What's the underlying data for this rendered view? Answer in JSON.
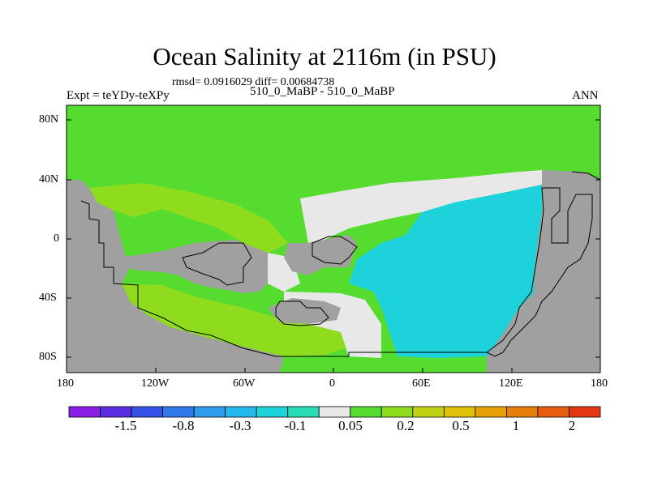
{
  "title": "Ocean Salinity at 2116m (in PSU)",
  "stats": "rmsd= 0.0916029 diff= 0.00684738",
  "left_label": "Expt = teYDy-teXPy",
  "center_label": "510_0_MaBP - 510_0_MaBP",
  "right_label": "ANN",
  "lat_labels": [
    "80N",
    "40N",
    "0",
    "40S",
    "80S"
  ],
  "lon_labels": [
    "180",
    "120W",
    "60W",
    "0",
    "60E",
    "120E",
    "180"
  ],
  "colorbar": {
    "colors": [
      "#8a1fe6",
      "#5a2ee0",
      "#3552e6",
      "#2f79ea",
      "#2f9bee",
      "#24b9ec",
      "#1ed2dc",
      "#27dcb4",
      "#e8e8e8",
      "#55dc2f",
      "#8fdc1e",
      "#c0d214",
      "#dfc208",
      "#e6a008",
      "#e67e08",
      "#e65c10",
      "#e43814"
    ],
    "labels": [
      "-1.5",
      "-0.8",
      "-0.3",
      "-0.1",
      "0.05",
      "0.2",
      "0.5",
      "1",
      "2"
    ]
  },
  "colors": {
    "land": "#a0a0a0",
    "near_zero": "#e8e8e8",
    "positive_green": "#55dc2f",
    "positive_lime": "#8fdc1e",
    "negative_cyan": "#1ed2dc"
  }
}
